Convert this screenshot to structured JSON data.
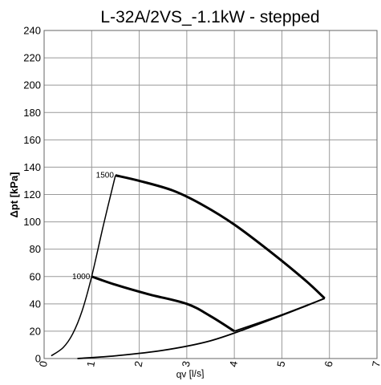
{
  "chart_data": {
    "type": "line",
    "title": "L-32A/2VS_-1.1kW - stepped",
    "xlabel": "qv [l/s]",
    "ylabel": "Δpt [kPa]",
    "xlim": [
      0,
      7
    ],
    "ylim": [
      0,
      240
    ],
    "x_ticks": [
      0,
      1,
      2,
      3,
      4,
      5,
      6,
      7
    ],
    "y_ticks": [
      0,
      20,
      40,
      60,
      80,
      100,
      120,
      140,
      160,
      180,
      200,
      220,
      240
    ],
    "grid": true,
    "series": [
      {
        "label": "1500",
        "points": [
          [
            1.5,
            134
          ],
          [
            2.0,
            130
          ],
          [
            2.7,
            123
          ],
          [
            3.3,
            113
          ],
          [
            4.0,
            98
          ],
          [
            4.8,
            77
          ],
          [
            5.5,
            57
          ],
          [
            5.9,
            44
          ]
        ]
      },
      {
        "label": "1000",
        "points": [
          [
            1.0,
            60
          ],
          [
            1.5,
            54
          ],
          [
            2.2,
            47
          ],
          [
            3.0,
            40
          ],
          [
            3.5,
            31
          ],
          [
            4.0,
            20
          ]
        ]
      },
      {
        "label": "",
        "points": [
          [
            0.15,
            2
          ],
          [
            0.4,
            8
          ],
          [
            0.6,
            18
          ],
          [
            0.8,
            35
          ],
          [
            1.0,
            60
          ],
          [
            1.25,
            98
          ],
          [
            1.5,
            134
          ]
        ]
      },
      {
        "label": "",
        "points": [
          [
            0.7,
            0
          ],
          [
            1.5,
            2
          ],
          [
            2.5,
            6
          ],
          [
            3.5,
            13
          ],
          [
            4.5,
            25
          ],
          [
            5.4,
            37
          ],
          [
            5.9,
            44
          ]
        ]
      },
      {
        "label": "",
        "points": [
          [
            4.0,
            20
          ],
          [
            5.0,
            32
          ],
          [
            5.9,
            44
          ]
        ]
      }
    ]
  }
}
